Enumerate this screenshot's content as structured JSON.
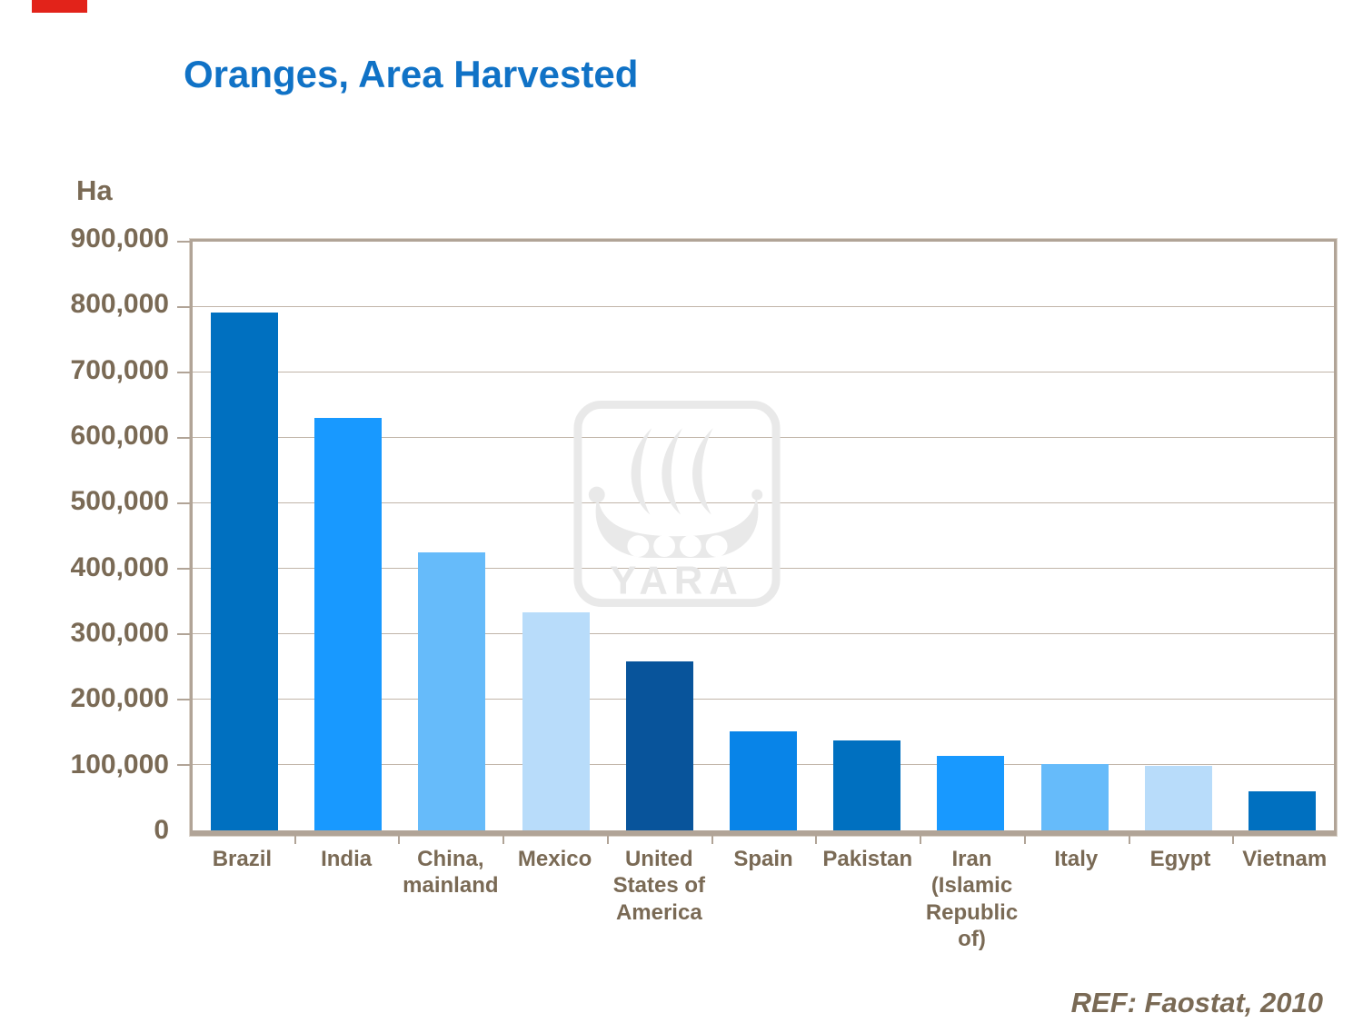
{
  "slide": {
    "title": "Oranges, Area Harvested",
    "ref_note": "REF: Faostat, 2010",
    "watermark_text": "YARA"
  },
  "theme": {
    "background": "#FFFFFF",
    "title_color": "#1072C6",
    "axis_text_color": "#7A6A55",
    "grid_color": "#C1B5A9",
    "frame_color": "#B1A497",
    "accent_red": "#E2231A",
    "watermark_gray": "#E9E9E9"
  },
  "chart_data": {
    "type": "bar",
    "title": "Oranges, Area Harvested",
    "unit_label": "Ha",
    "ylabel": "Ha",
    "xlabel": "",
    "ylim": [
      0,
      900000
    ],
    "ytick_step": 100000,
    "ytick_labels": [
      "0",
      "100,000",
      "200,000",
      "300,000",
      "400,000",
      "500,000",
      "600,000",
      "700,000",
      "800,000",
      "900,000"
    ],
    "grid": true,
    "legend": "none",
    "categories": [
      "Brazil",
      "India",
      "China, mainland",
      "Mexico",
      "United States of America",
      "Spain",
      "Pakistan",
      "Iran (Islamic Republic of)",
      "Italy",
      "Egypt",
      "Vietnam"
    ],
    "values": [
      792000,
      630000,
      425000,
      333000,
      258000,
      152000,
      138000,
      114000,
      102000,
      99000,
      60000
    ],
    "bar_colors": [
      "#0070C0",
      "#1899FF",
      "#66BBFA",
      "#B8DCFA",
      "#08549B",
      "#0884E8",
      "#0070C0",
      "#1899FF",
      "#66BBFA",
      "#B8DCFA",
      "#0070C0"
    ],
    "source_note": "REF: Faostat, 2010"
  }
}
